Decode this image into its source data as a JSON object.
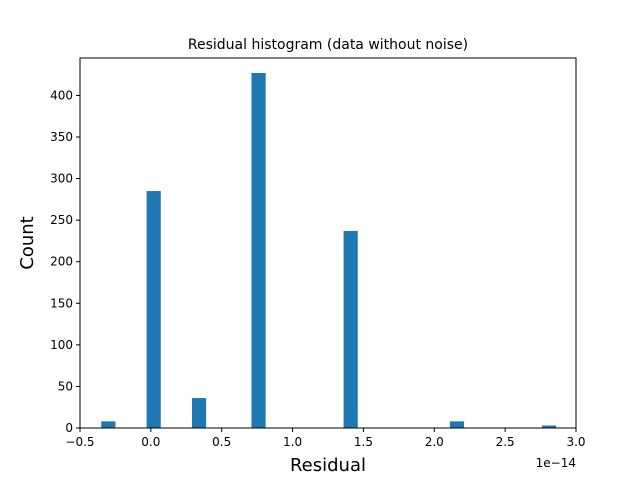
{
  "chart_data": {
    "type": "bar",
    "title": "Residual histogram (data without noise)",
    "xlabel": "Residual",
    "ylabel": "Count",
    "offset_label": "1e−14",
    "xlim": [
      -0.5,
      3.0
    ],
    "ylim": [
      0,
      445
    ],
    "bin_width": 0.1,
    "x_ticks": [
      -0.5,
      0.0,
      0.5,
      1.0,
      1.5,
      2.0,
      2.5,
      3.0
    ],
    "x_tick_labels": [
      "−0.5",
      "0.0",
      "0.5",
      "1.0",
      "1.5",
      "2.0",
      "2.5",
      "3.0"
    ],
    "y_ticks": [
      0,
      50,
      100,
      150,
      200,
      250,
      300,
      350,
      400
    ],
    "y_tick_labels": [
      "0",
      "50",
      "100",
      "150",
      "200",
      "250",
      "300",
      "350",
      "400"
    ],
    "grid": false,
    "bar_color": "#1f77b4",
    "bars": [
      {
        "x": -0.3,
        "value": 8
      },
      {
        "x": 0.02,
        "value": 285
      },
      {
        "x": 0.34,
        "value": 36
      },
      {
        "x": 0.76,
        "value": 427
      },
      {
        "x": 1.41,
        "value": 237
      },
      {
        "x": 2.16,
        "value": 8
      },
      {
        "x": 2.81,
        "value": 3
      }
    ]
  }
}
